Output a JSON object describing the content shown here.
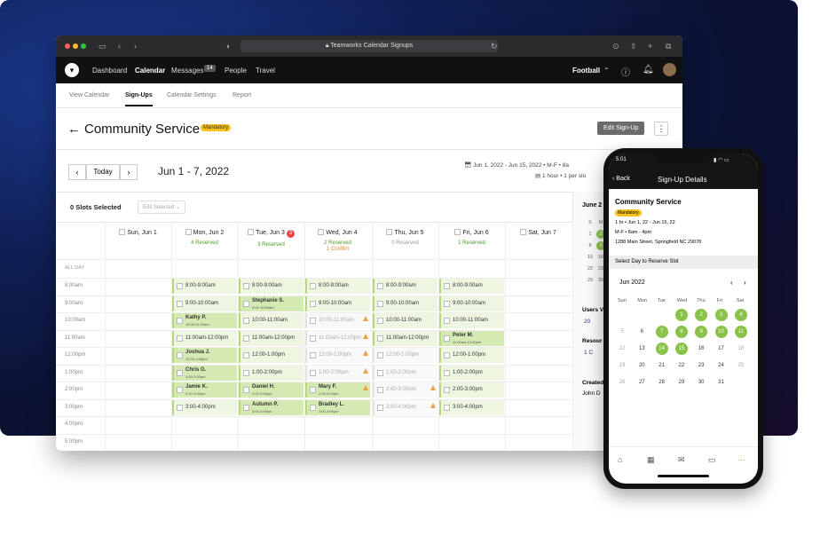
{
  "browser": {
    "url": "Teamworks Calendar Signups"
  },
  "nav": {
    "items": [
      "Dashboard",
      "Calendar",
      "Messages",
      "People",
      "Travel"
    ],
    "messages_badge": "14",
    "team": "Football"
  },
  "subnav": [
    "View Calendar",
    "Sign-Ups",
    "Calendar Settings",
    "Report"
  ],
  "page": {
    "title": "Community Service",
    "badge": "Mandatory",
    "edit": "Edit Sign-Up",
    "today": "Today",
    "range": "Jun 1 - 7, 2022",
    "info1": "Jun 1, 2022 - Jun 15, 2022  •  M-F  •  8a",
    "info2": "1 hour  •  1 per slo",
    "slots": "0 Slots Selected",
    "edit_sel": "Edit Selected",
    "allday": "ALL DAY",
    "side_month": "June 2"
  },
  "days": [
    {
      "name": "Sun, Jun 1",
      "stat": ""
    },
    {
      "name": "Mon, Jun 2",
      "stat": "4 Reserved"
    },
    {
      "name": "Tue, Jun 3",
      "stat": "3 Reserved",
      "alert": "3"
    },
    {
      "name": "Wed, Jun 4",
      "stat": "2 Reserved",
      "conflict": "1 Conflict"
    },
    {
      "name": "Thu, Jun 5",
      "stat": "0 Reserved"
    },
    {
      "name": "Fri, Jun 6",
      "stat": "1 Reserved"
    },
    {
      "name": "Sat, Jun 7",
      "stat": ""
    }
  ],
  "times": [
    "8:00am",
    "9:00am",
    "10:00am",
    "11:00am",
    "12:00pm",
    "1:00pm",
    "2:00pm",
    "3:00pm",
    "4:00pm",
    "5:00pm"
  ],
  "slots": {
    "mon": [
      "8:00-9:00am",
      "9:00-10:00am",
      [
        "Kathy P.",
        "10:00-11:00am"
      ],
      "11:00am-12:00pm",
      [
        "Joshua J.",
        "12:00-1:00pm"
      ],
      [
        "Chris G.",
        "1:00-2:00pm"
      ],
      [
        "Jamie K.",
        "2:00-3:00pm"
      ],
      "3:00-4:00pm"
    ],
    "tue": [
      "8:00-9:00am",
      [
        "Stephanie S.",
        "9:00-10:00am"
      ],
      "10:00-11:00am",
      "11:00am-12:00pm",
      "12:00-1:00pm",
      "1:00-2:00pm",
      [
        "Daniel H.",
        "2:00-3:00pm"
      ],
      [
        "Autumn P.",
        "3:00-4:00pm"
      ]
    ],
    "wed": [
      "8:00-9:00am",
      "9:00-10:00am",
      "10:00-11:00am",
      "11:00am-12:00pm",
      "12:00-1:00pm",
      "1:00-2:00pm",
      [
        "Mary F.",
        "2:00-3:00pm"
      ],
      [
        "Bradley L.",
        "3:00-4:00pm"
      ]
    ],
    "thu": [
      "8:00-9:00am",
      "9:00-10:00am",
      "10:00-11:00am",
      "11:00am-12:00pm",
      "12:00-1:00pm",
      "1:00-2:00pm",
      "2:00-3:00pm",
      "3:00-4:00pm"
    ],
    "fri": [
      "8:00-9:00am",
      "9:00-10:00am",
      "10:00-11:00am",
      [
        "Peter M.",
        "11:00am-12:00pm"
      ],
      "12:00-1:00pm",
      "1:00-2:00pm",
      "2:00-3:00pm",
      "3:00-4:00pm"
    ]
  },
  "side": {
    "users": "Users V",
    "users_val": "20",
    "resources": "Resour",
    "res_val": "1 C",
    "created": "Created",
    "created_val": "John D"
  },
  "phone": {
    "time": "5:01",
    "back": "Back",
    "title": "Sign-Up Details",
    "event": "Community Service",
    "badge": "Mandatory",
    "line1": "1 hr  •  Jun 1, 22 - Jun 15, 22",
    "line2": "M-F  •  8am - 4pm",
    "line3": "1288 Main Street, Springfield NC 29078",
    "select": "Select Day to Reserve Slot",
    "month": "Jun 2022",
    "weekdays": [
      "Sun",
      "Mon",
      "Tue",
      "Wed",
      "Thu",
      "Fri",
      "Sat"
    ]
  }
}
